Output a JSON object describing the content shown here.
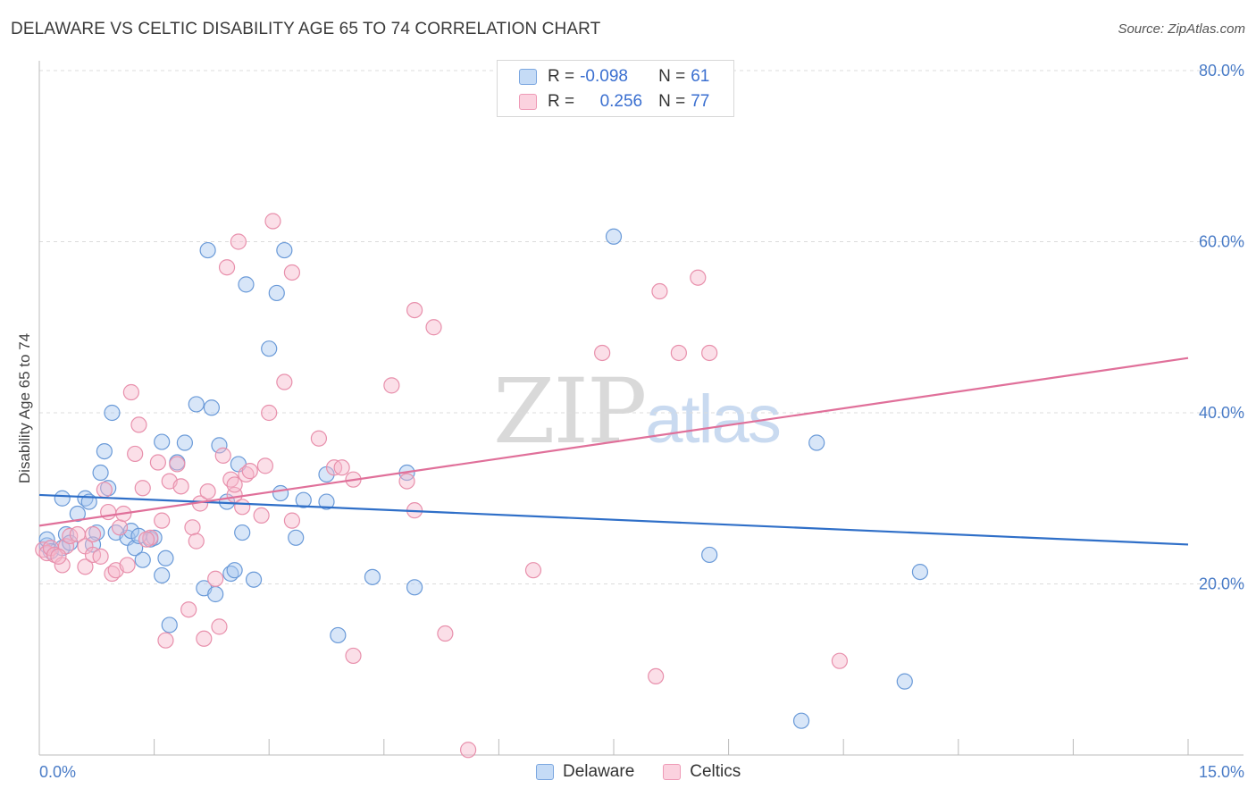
{
  "header": {
    "title": "DELAWARE VS CELTIC DISABILITY AGE 65 TO 74 CORRELATION CHART",
    "source": "Source: ZipAtlas.com"
  },
  "watermark": {
    "zip": "ZIP",
    "atlas": "atlas"
  },
  "legend": {
    "rows": [
      {
        "r_label": "R =",
        "r_value": "-0.098",
        "n_label": "N =",
        "n_value": "61",
        "color": "#a8c8f0"
      },
      {
        "r_label": "R =",
        "r_value": "0.256",
        "n_label": "N =",
        "n_value": "77",
        "color": "#f7b8cc"
      }
    ]
  },
  "bottom_legend": {
    "items": [
      {
        "label": "Delaware",
        "color": "#a8c8f0"
      },
      {
        "label": "Celtics",
        "color": "#f7b8cc"
      }
    ]
  },
  "chart_data": {
    "type": "scatter",
    "title": "DELAWARE VS CELTIC DISABILITY AGE 65 TO 74 CORRELATION CHART",
    "xlabel": "",
    "ylabel": "Disability Age 65 to 74",
    "xlim": [
      0,
      15
    ],
    "ylim": [
      0,
      80
    ],
    "y_ticks": [
      "20.0%",
      "40.0%",
      "60.0%",
      "80.0%"
    ],
    "y_tick_values": [
      20,
      40,
      60,
      80
    ],
    "x_tick_labels": [
      "0.0%",
      "15.0%"
    ],
    "x_tick_label_values": [
      0,
      15
    ],
    "x_minor_ticks": [
      1.5,
      3,
      4.5,
      6,
      7.5,
      9,
      10.5,
      12,
      13.5,
      15
    ],
    "grid": "horizontal dashed",
    "legend_position": "top-center",
    "series": [
      {
        "name": "Delaware",
        "color": "#a8c8f0",
        "stroke": "#6a9ad8",
        "trend_color": "#2f6fc8",
        "trend": {
          "x": [
            0,
            15
          ],
          "y": [
            30.4,
            24.6
          ]
        },
        "points": [
          [
            0.1,
            24.5
          ],
          [
            0.1,
            25.2
          ],
          [
            0.15,
            23.8
          ],
          [
            0.3,
            30.0
          ],
          [
            0.3,
            24.2
          ],
          [
            0.35,
            25.8
          ],
          [
            0.4,
            24.8
          ],
          [
            0.5,
            28.2
          ],
          [
            0.6,
            30.0
          ],
          [
            0.65,
            29.6
          ],
          [
            0.75,
            26.0
          ],
          [
            0.8,
            33.0
          ],
          [
            0.85,
            35.5
          ],
          [
            0.9,
            31.2
          ],
          [
            0.95,
            40.0
          ],
          [
            1.0,
            26.0
          ],
          [
            1.15,
            25.4
          ],
          [
            1.2,
            26.2
          ],
          [
            1.25,
            24.2
          ],
          [
            1.35,
            22.8
          ],
          [
            1.45,
            25.2
          ],
          [
            1.5,
            25.4
          ],
          [
            1.6,
            21.0
          ],
          [
            1.6,
            36.6
          ],
          [
            1.65,
            23.0
          ],
          [
            1.7,
            15.2
          ],
          [
            1.8,
            34.2
          ],
          [
            1.9,
            36.5
          ],
          [
            2.05,
            41.0
          ],
          [
            2.15,
            19.5
          ],
          [
            2.2,
            59.0
          ],
          [
            2.25,
            40.6
          ],
          [
            2.3,
            18.8
          ],
          [
            2.35,
            36.2
          ],
          [
            2.45,
            29.6
          ],
          [
            2.5,
            21.2
          ],
          [
            2.55,
            21.6
          ],
          [
            2.6,
            34.0
          ],
          [
            2.65,
            26.0
          ],
          [
            2.7,
            55.0
          ],
          [
            2.8,
            20.5
          ],
          [
            3.0,
            47.5
          ],
          [
            3.1,
            54.0
          ],
          [
            3.15,
            30.6
          ],
          [
            3.2,
            59.0
          ],
          [
            3.35,
            25.4
          ],
          [
            3.45,
            29.8
          ],
          [
            3.75,
            29.6
          ],
          [
            3.75,
            32.8
          ],
          [
            3.9,
            14.0
          ],
          [
            4.35,
            20.8
          ],
          [
            4.8,
            33.0
          ],
          [
            4.9,
            19.6
          ],
          [
            7.5,
            60.6
          ],
          [
            8.75,
            23.4
          ],
          [
            9.95,
            4.0
          ],
          [
            10.15,
            36.5
          ],
          [
            11.3,
            8.6
          ],
          [
            11.5,
            21.4
          ],
          [
            0.7,
            24.6
          ],
          [
            1.3,
            25.6
          ]
        ]
      },
      {
        "name": "Celtics",
        "color": "#f7b8cc",
        "stroke": "#e890ac",
        "trend_color": "#e0709a",
        "trend": {
          "x": [
            0,
            15
          ],
          "y": [
            26.8,
            46.4
          ]
        },
        "points": [
          [
            0.05,
            24.0
          ],
          [
            0.1,
            23.6
          ],
          [
            0.15,
            24.2
          ],
          [
            0.2,
            23.4
          ],
          [
            0.3,
            22.2
          ],
          [
            0.35,
            24.4
          ],
          [
            0.4,
            25.6
          ],
          [
            0.5,
            25.8
          ],
          [
            0.6,
            24.4
          ],
          [
            0.6,
            22.0
          ],
          [
            0.7,
            25.8
          ],
          [
            0.7,
            23.4
          ],
          [
            0.8,
            23.2
          ],
          [
            0.85,
            31.0
          ],
          [
            0.9,
            28.4
          ],
          [
            0.95,
            21.2
          ],
          [
            1.0,
            21.6
          ],
          [
            1.05,
            26.6
          ],
          [
            1.1,
            28.2
          ],
          [
            1.15,
            22.2
          ],
          [
            1.2,
            42.4
          ],
          [
            1.25,
            35.2
          ],
          [
            1.3,
            38.6
          ],
          [
            1.35,
            31.2
          ],
          [
            1.45,
            25.4
          ],
          [
            1.55,
            34.2
          ],
          [
            1.6,
            27.4
          ],
          [
            1.65,
            13.4
          ],
          [
            1.7,
            32.0
          ],
          [
            1.8,
            34.0
          ],
          [
            1.85,
            31.4
          ],
          [
            1.95,
            17.0
          ],
          [
            2.0,
            26.6
          ],
          [
            2.05,
            25.0
          ],
          [
            2.1,
            29.4
          ],
          [
            2.15,
            13.6
          ],
          [
            2.2,
            30.8
          ],
          [
            2.3,
            20.6
          ],
          [
            2.35,
            15.0
          ],
          [
            2.4,
            35.0
          ],
          [
            2.45,
            57.0
          ],
          [
            2.5,
            32.2
          ],
          [
            2.55,
            30.4
          ],
          [
            2.6,
            60.0
          ],
          [
            2.65,
            29.0
          ],
          [
            2.7,
            32.8
          ],
          [
            2.75,
            33.2
          ],
          [
            2.9,
            28.0
          ],
          [
            2.95,
            33.8
          ],
          [
            3.0,
            40.0
          ],
          [
            3.05,
            62.4
          ],
          [
            3.2,
            43.6
          ],
          [
            3.3,
            56.4
          ],
          [
            3.3,
            27.4
          ],
          [
            3.65,
            37.0
          ],
          [
            3.85,
            33.6
          ],
          [
            3.95,
            33.6
          ],
          [
            4.1,
            32.2
          ],
          [
            4.1,
            11.6
          ],
          [
            4.6,
            43.2
          ],
          [
            4.8,
            32.0
          ],
          [
            4.9,
            52.0
          ],
          [
            4.9,
            28.6
          ],
          [
            5.15,
            50.0
          ],
          [
            5.3,
            14.2
          ],
          [
            5.6,
            0.6
          ],
          [
            6.45,
            21.6
          ],
          [
            7.35,
            47.0
          ],
          [
            8.05,
            9.2
          ],
          [
            8.1,
            54.2
          ],
          [
            8.35,
            47.0
          ],
          [
            8.6,
            55.8
          ],
          [
            8.75,
            47.0
          ],
          [
            10.45,
            11.0
          ],
          [
            0.25,
            23.2
          ],
          [
            1.4,
            25.2
          ],
          [
            2.55,
            31.6
          ]
        ]
      }
    ]
  }
}
